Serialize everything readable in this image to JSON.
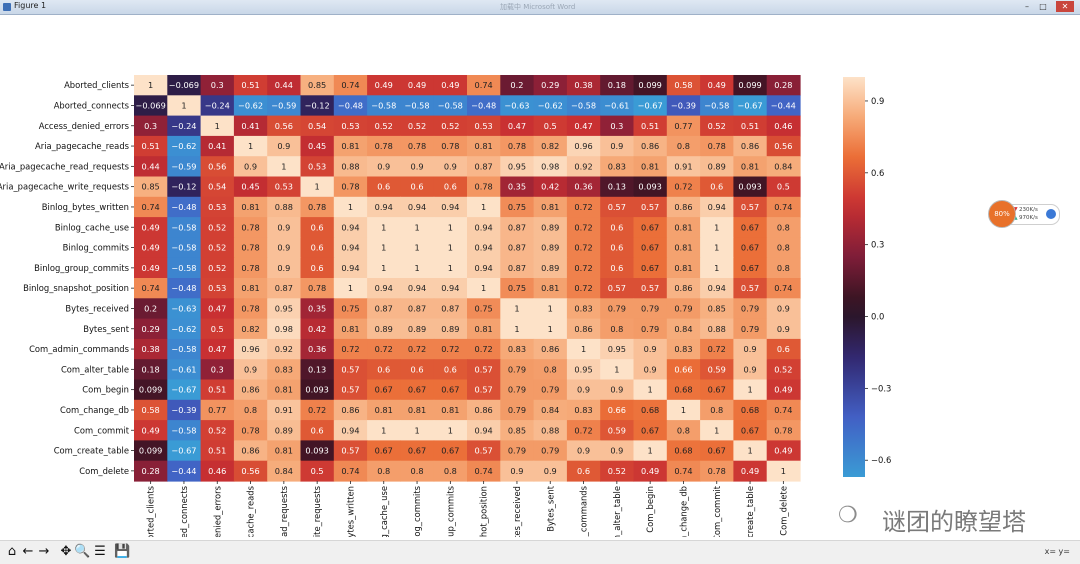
{
  "window": {
    "title": "Figure 1",
    "background_title": "加载中 Microsoft Word"
  },
  "toolbar": {
    "buttons": [
      {
        "name": "home-icon",
        "glyph": "⌂"
      },
      {
        "name": "back-icon",
        "glyph": "←"
      },
      {
        "name": "forward-icon",
        "glyph": "→"
      },
      {
        "name": "pan-icon",
        "glyph": "✥"
      },
      {
        "name": "zoom-icon",
        "glyph": "🔍"
      },
      {
        "name": "configure-subplots-icon",
        "glyph": "☰"
      },
      {
        "name": "save-icon",
        "glyph": "💾"
      }
    ],
    "coords": "x= y="
  },
  "net_widget": {
    "percent": "80%",
    "up": "230K/s",
    "down": "970K/s"
  },
  "watermark": {
    "text": "谜团的瞭望塔"
  },
  "chart_data": {
    "type": "heatmap",
    "colormap": "icefire-like diverging (blue low, dark middle, peach high)",
    "row_labels": [
      "Aborted_clients",
      "Aborted_connects",
      "Access_denied_errors",
      "Aria_pagecache_reads",
      "Aria_pagecache_read_requests",
      "Aria_pagecache_write_requests",
      "Binlog_bytes_written",
      "Binlog_cache_use",
      "Binlog_commits",
      "Binlog_group_commits",
      "Binlog_snapshot_position",
      "Bytes_received",
      "Bytes_sent",
      "Com_admin_commands",
      "Com_alter_table",
      "Com_begin",
      "Com_change_db",
      "Com_commit",
      "Com_create_table",
      "Com_delete"
    ],
    "col_labels": [
      "borted_clients",
      "ted_connects",
      "denied_errors",
      "ecache_reads",
      "read_requests",
      "rite_requests",
      "bytes_written",
      "g_cache_use",
      "nlog_commits",
      "oup_commits",
      "shot_position",
      "tes_received",
      "Bytes_sent",
      "n_commands",
      "n_alter_table",
      "Com_begin",
      "n_change_db",
      "Com_commit",
      "_create_table",
      "Com_delete"
    ],
    "values": [
      [
        1,
        -0.069,
        0.3,
        0.51,
        0.44,
        0.85,
        0.74,
        0.49,
        0.49,
        0.49,
        0.74,
        0.2,
        0.29,
        0.38,
        0.18,
        0.099,
        0.58,
        0.49,
        0.099,
        0.28
      ],
      [
        -0.069,
        1,
        -0.24,
        -0.62,
        -0.59,
        -0.12,
        -0.48,
        -0.58,
        -0.58,
        -0.58,
        -0.48,
        -0.63,
        -0.62,
        -0.58,
        -0.61,
        -0.67,
        -0.39,
        -0.58,
        -0.67,
        -0.44
      ],
      [
        0.3,
        -0.24,
        1,
        0.41,
        0.56,
        0.54,
        0.53,
        0.52,
        0.52,
        0.52,
        0.53,
        0.47,
        0.5,
        0.47,
        0.3,
        0.51,
        0.77,
        0.52,
        0.51,
        0.46
      ],
      [
        0.51,
        -0.62,
        0.41,
        1,
        0.9,
        0.45,
        0.81,
        0.78,
        0.78,
        0.78,
        0.81,
        0.78,
        0.82,
        0.96,
        0.9,
        0.86,
        0.8,
        0.78,
        0.86,
        0.56
      ],
      [
        0.44,
        -0.59,
        0.56,
        0.9,
        1,
        0.53,
        0.88,
        0.9,
        0.9,
        0.9,
        0.87,
        0.95,
        0.98,
        0.92,
        0.83,
        0.81,
        0.91,
        0.89,
        0.81,
        0.84
      ],
      [
        0.85,
        -0.12,
        0.54,
        0.45,
        0.53,
        1,
        0.78,
        0.6,
        0.6,
        0.6,
        0.78,
        0.35,
        0.42,
        0.36,
        0.13,
        0.093,
        0.72,
        0.6,
        0.093,
        0.5
      ],
      [
        0.74,
        -0.48,
        0.53,
        0.81,
        0.88,
        0.78,
        1,
        0.94,
        0.94,
        0.94,
        1,
        0.75,
        0.81,
        0.72,
        0.57,
        0.57,
        0.86,
        0.94,
        0.57,
        0.74
      ],
      [
        0.49,
        -0.58,
        0.52,
        0.78,
        0.9,
        0.6,
        0.94,
        1,
        1,
        1,
        0.94,
        0.87,
        0.89,
        0.72,
        0.6,
        0.67,
        0.81,
        1,
        0.67,
        0.8
      ],
      [
        0.49,
        -0.58,
        0.52,
        0.78,
        0.9,
        0.6,
        0.94,
        1,
        1,
        1,
        0.94,
        0.87,
        0.89,
        0.72,
        0.6,
        0.67,
        0.81,
        1,
        0.67,
        0.8
      ],
      [
        0.49,
        -0.58,
        0.52,
        0.78,
        0.9,
        0.6,
        0.94,
        1,
        1,
        1,
        0.94,
        0.87,
        0.89,
        0.72,
        0.6,
        0.67,
        0.81,
        1,
        0.67,
        0.8
      ],
      [
        0.74,
        -0.48,
        0.53,
        0.81,
        0.87,
        0.78,
        1,
        0.94,
        0.94,
        0.94,
        1,
        0.75,
        0.81,
        0.72,
        0.57,
        0.57,
        0.86,
        0.94,
        0.57,
        0.74
      ],
      [
        0.2,
        -0.63,
        0.47,
        0.78,
        0.95,
        0.35,
        0.75,
        0.87,
        0.87,
        0.87,
        0.75,
        1,
        1,
        0.83,
        0.79,
        0.79,
        0.79,
        0.85,
        0.79,
        0.9
      ],
      [
        0.29,
        -0.62,
        0.5,
        0.82,
        0.98,
        0.42,
        0.81,
        0.89,
        0.89,
        0.89,
        0.81,
        1,
        1,
        0.86,
        0.8,
        0.79,
        0.84,
        0.88,
        0.79,
        0.9
      ],
      [
        0.38,
        -0.58,
        0.47,
        0.96,
        0.92,
        0.36,
        0.72,
        0.72,
        0.72,
        0.72,
        0.72,
        0.83,
        0.86,
        1,
        0.95,
        0.9,
        0.83,
        0.72,
        0.9,
        0.6
      ],
      [
        0.18,
        -0.61,
        0.3,
        0.9,
        0.83,
        0.13,
        0.57,
        0.6,
        0.6,
        0.6,
        0.57,
        0.79,
        0.8,
        0.95,
        1,
        0.9,
        0.66,
        0.59,
        0.9,
        0.52
      ],
      [
        0.099,
        -0.67,
        0.51,
        0.86,
        0.81,
        0.093,
        0.57,
        0.67,
        0.67,
        0.67,
        0.57,
        0.79,
        0.79,
        0.9,
        0.9,
        1,
        0.68,
        0.67,
        1,
        0.49
      ],
      [
        0.58,
        -0.39,
        0.77,
        0.8,
        0.91,
        0.72,
        0.86,
        0.81,
        0.81,
        0.81,
        0.86,
        0.79,
        0.84,
        0.83,
        0.66,
        0.68,
        1,
        0.8,
        0.68,
        0.74
      ],
      [
        0.49,
        -0.58,
        0.52,
        0.78,
        0.89,
        0.6,
        0.94,
        1,
        1,
        1,
        0.94,
        0.85,
        0.88,
        0.72,
        0.59,
        0.67,
        0.8,
        1,
        0.67,
        0.78
      ],
      [
        0.099,
        -0.67,
        0.51,
        0.86,
        0.81,
        0.093,
        0.57,
        0.67,
        0.67,
        0.67,
        0.57,
        0.79,
        0.79,
        0.9,
        0.9,
        1,
        0.68,
        0.67,
        1,
        0.49
      ],
      [
        0.28,
        -0.44,
        0.46,
        0.56,
        0.84,
        0.5,
        0.74,
        0.8,
        0.8,
        0.8,
        0.74,
        0.9,
        0.9,
        0.6,
        0.52,
        0.49,
        0.74,
        0.78,
        0.49,
        1
      ]
    ],
    "colorbar": {
      "min": -0.67,
      "max": 1,
      "ticks": [
        0.9,
        0.6,
        0.3,
        0.0,
        -0.3,
        -0.6
      ],
      "tick_labels": [
        "0.9",
        "0.6",
        "0.3",
        "0.0",
        "−0.3",
        "−0.6"
      ]
    }
  }
}
